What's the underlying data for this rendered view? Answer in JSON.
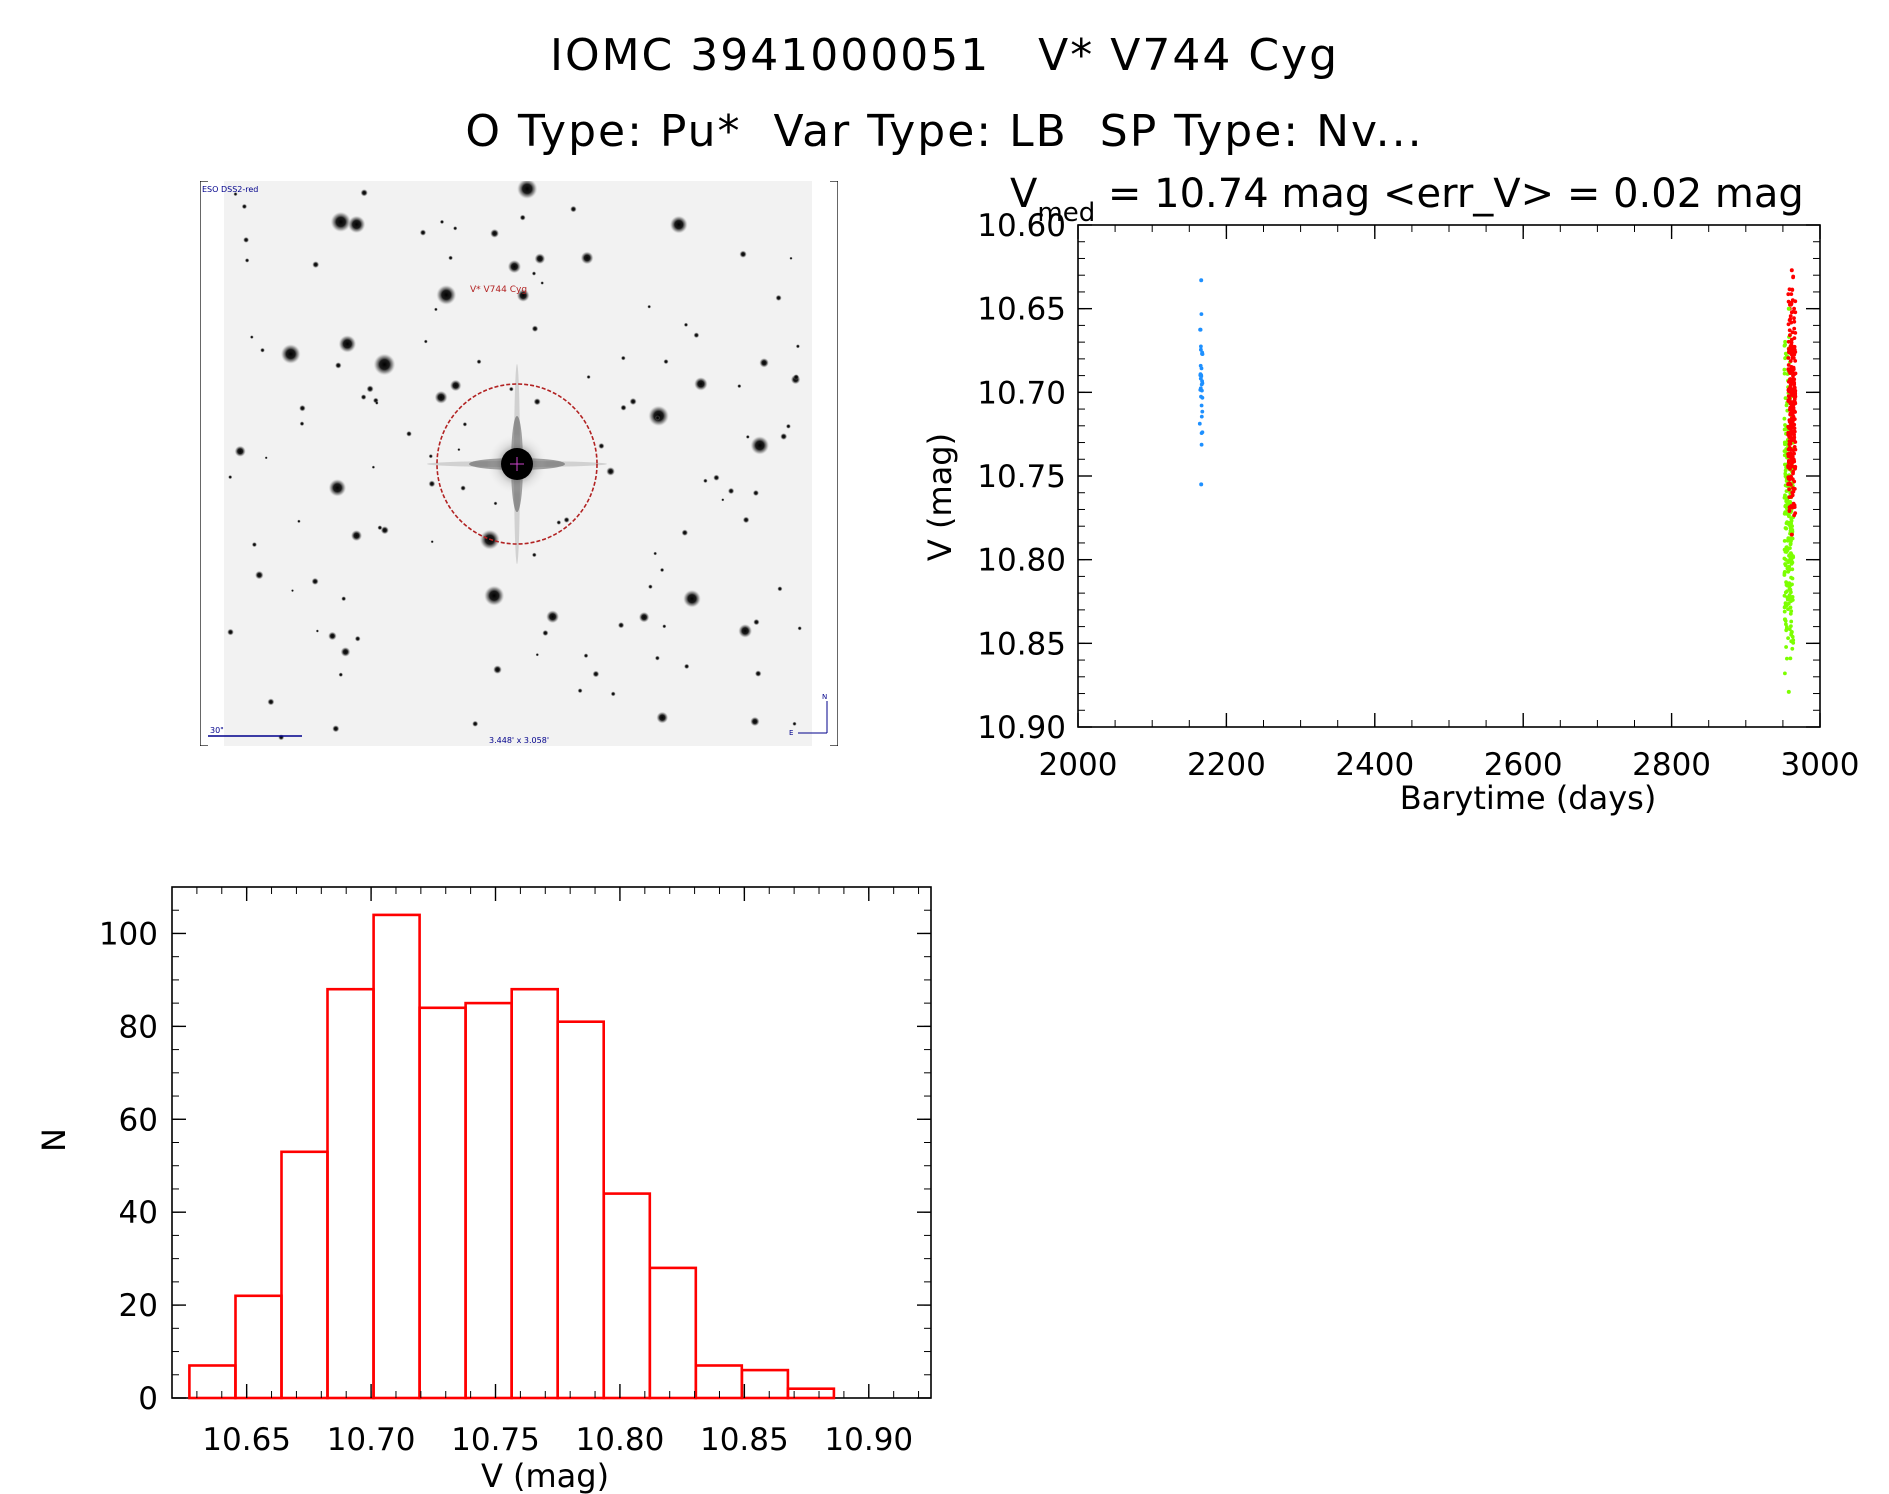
{
  "header": {
    "line1": "IOMC 3941000051   V* V744 Cyg",
    "line2": "O Type: Pu*  Var Type: LB  SP Type: Nv..."
  },
  "image_panel": {
    "survey_label": "ESO DSS2-red",
    "object_label": "V* V744 Cyg",
    "scale_label": "30\"",
    "fov_label": "3.448' x 3.058'",
    "compass_n": "N",
    "compass_e": "E"
  },
  "colors": {
    "red": "#ff0000",
    "blue": "#1e90ff",
    "green": "#7cff00",
    "circle": "#b22222",
    "label_blue": "#00008b"
  },
  "chart_data": [
    {
      "type": "scatter",
      "title_prefix": "V",
      "title_sub": "med",
      "title_rest": " =  10.74 mag <err_V> = 0.02 mag",
      "xlabel": "Barytime (days)",
      "ylabel": "V (mag)",
      "xlim": [
        2000,
        3000
      ],
      "ylim": [
        10.9,
        10.6
      ],
      "y_inverted": true,
      "x_ticks": [
        "2000",
        "2200",
        "2400",
        "2600",
        "2800",
        "3000"
      ],
      "y_ticks": [
        "10.60",
        "10.65",
        "10.70",
        "10.75",
        "10.80",
        "10.85",
        "10.90"
      ],
      "series": [
        {
          "color": "blue",
          "x_center": 2166,
          "x_spread": 2,
          "y_range": [
            10.633,
            10.755
          ],
          "count": 30
        },
        {
          "color": "green",
          "x_center": 2958,
          "x_spread": 6,
          "y_range": [
            10.65,
            10.879
          ],
          "count": 260
        },
        {
          "color": "red",
          "x_center": 2962,
          "x_spread": 5,
          "y_range": [
            10.627,
            10.785
          ],
          "count": 260
        }
      ]
    },
    {
      "type": "bar",
      "xlabel": "V (mag)",
      "ylabel": "N",
      "xlim": [
        10.62,
        10.925
      ],
      "ylim": [
        0,
        110
      ],
      "x_ticks": [
        "10.65",
        "10.70",
        "10.75",
        "10.80",
        "10.85",
        "10.90"
      ],
      "y_ticks": [
        "0",
        "20",
        "40",
        "60",
        "80",
        "100"
      ],
      "bin_width": 0.0185,
      "bins": [
        10.627,
        10.6455,
        10.664,
        10.6825,
        10.701,
        10.7195,
        10.738,
        10.7565,
        10.775,
        10.7935,
        10.812,
        10.8305,
        10.849,
        10.8675
      ],
      "values": [
        7,
        22,
        53,
        88,
        104,
        84,
        85,
        88,
        81,
        44,
        28,
        7,
        6,
        2
      ]
    }
  ]
}
